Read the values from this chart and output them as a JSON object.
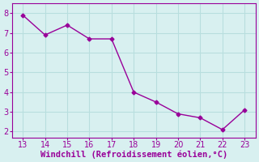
{
  "x": [
    13,
    14,
    15,
    16,
    17,
    18,
    19,
    20,
    21,
    22,
    23
  ],
  "y": [
    7.9,
    6.9,
    7.4,
    6.7,
    6.7,
    4.0,
    3.5,
    2.9,
    2.7,
    2.1,
    3.1
  ],
  "line_color": "#990099",
  "marker": "D",
  "markersize": 2.5,
  "linewidth": 1.0,
  "xlabel": "Windchill (Refroidissement éolien,°C)",
  "xlabel_color": "#990099",
  "xlabel_fontsize": 7.5,
  "ylabel_ticks": [
    2,
    3,
    4,
    5,
    6,
    7,
    8
  ],
  "xtick_labels": [
    "13",
    "14",
    "15",
    "16",
    "17",
    "18",
    "19",
    "20",
    "21",
    "22",
    "23"
  ],
  "xlim": [
    12.5,
    23.5
  ],
  "ylim": [
    1.7,
    8.5
  ],
  "background_color": "#d8f0f0",
  "grid_color": "#b8dede",
  "tick_color": "#990099",
  "tick_fontsize": 7,
  "spine_color": "#990099"
}
